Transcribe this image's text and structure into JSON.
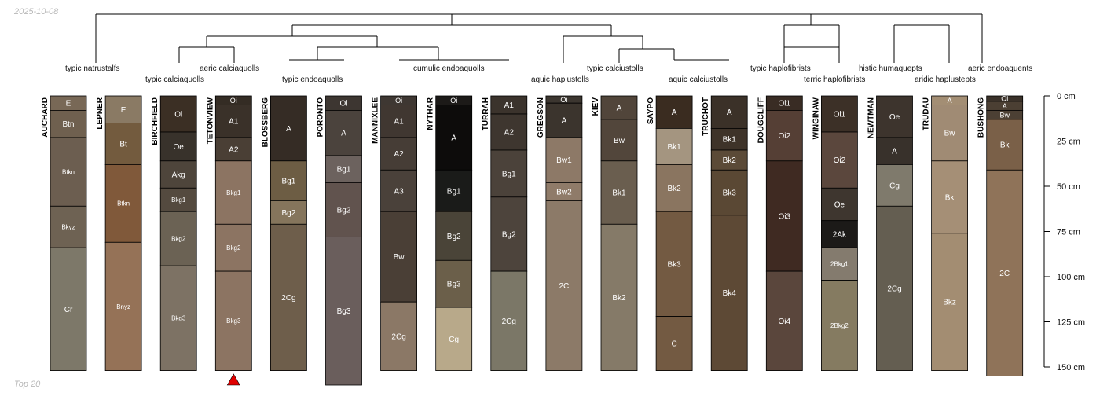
{
  "watermark": {
    "date": "2025-10-08",
    "footer": "Top 20"
  },
  "chart_data": {
    "type": "soil-profile-sketch",
    "y_axis": {
      "unit": "cm",
      "range": [
        0,
        150
      ],
      "ticks": [
        0,
        25,
        50,
        75,
        100,
        125,
        150
      ],
      "tick_labels": [
        "0 cm",
        "25 cm",
        "50 cm",
        "75 cm",
        "100 cm",
        "125 cm",
        "150 cm"
      ]
    },
    "taxa_labels": [
      "typic natrustalfs",
      "typic calciaquolls",
      "aeric calciaquolls",
      "typic endoaquolls",
      "cumulic endoaquolls",
      "aquic haplustolls",
      "typic calciustolls",
      "aquic calciustolls",
      "typic haplofibrists",
      "terric haplofibrists",
      "histic humaquepts",
      "aridic haplustepts",
      "aeric endoaquents"
    ],
    "marker": {
      "symbol": "triangle",
      "profile": "TETONVIEW",
      "color": "#e00000"
    },
    "profiles": [
      {
        "name": "AUCHARD",
        "horizons": [
          {
            "name": "E",
            "top": 0,
            "bottom": 8,
            "color": "#786856"
          },
          {
            "name": "Btn",
            "top": 8,
            "bottom": 23,
            "color": "#6f604f"
          },
          {
            "name": "Btkn",
            "top": 23,
            "bottom": 61,
            "color": "#6c5e50"
          },
          {
            "name": "Bkyz",
            "top": 61,
            "bottom": 84,
            "color": "#6e6253"
          },
          {
            "name": "Cr",
            "top": 84,
            "bottom": 152,
            "color": "#7d7869"
          }
        ]
      },
      {
        "name": "LEPNER",
        "horizons": [
          {
            "name": "E",
            "top": 0,
            "bottom": 15,
            "color": "#8a7a64"
          },
          {
            "name": "Bt",
            "top": 15,
            "bottom": 38,
            "color": "#735b3e"
          },
          {
            "name": "Btkn",
            "top": 38,
            "bottom": 81,
            "color": "#80593a"
          },
          {
            "name": "Bnyz",
            "top": 81,
            "bottom": 152,
            "color": "#957257"
          }
        ]
      },
      {
        "name": "BIRCHFIELD",
        "horizons": [
          {
            "name": "Oi",
            "top": 0,
            "bottom": 20,
            "color": "#3b2f24"
          },
          {
            "name": "Oe",
            "top": 20,
            "bottom": 36,
            "color": "#38322b"
          },
          {
            "name": "Akg",
            "top": 36,
            "bottom": 51,
            "color": "#4e453b"
          },
          {
            "name": "Bkg1",
            "top": 51,
            "bottom": 64,
            "color": "#544a3f"
          },
          {
            "name": "Bkg2",
            "top": 64,
            "bottom": 94,
            "color": "#6b6254"
          },
          {
            "name": "Bkg3",
            "top": 94,
            "bottom": 152,
            "color": "#7d7264"
          }
        ]
      },
      {
        "name": "TETONVIEW",
        "horizons": [
          {
            "name": "Oi",
            "top": 0,
            "bottom": 5,
            "color": "#342c24"
          },
          {
            "name": "A1",
            "top": 5,
            "bottom": 23,
            "color": "#3a3129"
          },
          {
            "name": "A2",
            "top": 23,
            "bottom": 36,
            "color": "#4a3f35"
          },
          {
            "name": "Bkg1",
            "top": 36,
            "bottom": 71,
            "color": "#8c7462"
          },
          {
            "name": "Bkg2",
            "top": 71,
            "bottom": 97,
            "color": "#8c7462"
          },
          {
            "name": "Bkg3",
            "top": 97,
            "bottom": 152,
            "color": "#8c7462"
          }
        ]
      },
      {
        "name": "BLOSSBERG",
        "horizons": [
          {
            "name": "A",
            "top": 0,
            "bottom": 36,
            "color": "#352c25"
          },
          {
            "name": "Bg1",
            "top": 36,
            "bottom": 58,
            "color": "#6d5d44"
          },
          {
            "name": "Bg2",
            "top": 58,
            "bottom": 71,
            "color": "#85755c"
          },
          {
            "name": "2Cg",
            "top": 71,
            "bottom": 152,
            "color": "#6e5e4b"
          }
        ]
      },
      {
        "name": "PORONTO",
        "horizons": [
          {
            "name": "Oi",
            "top": 0,
            "bottom": 8,
            "color": "#3d3631"
          },
          {
            "name": "A",
            "top": 8,
            "bottom": 33,
            "color": "#4b433d"
          },
          {
            "name": "Bg1",
            "top": 33,
            "bottom": 48,
            "color": "#6c625e"
          },
          {
            "name": "Bg2",
            "top": 48,
            "bottom": 78,
            "color": "#61534e"
          },
          {
            "name": "Bg3",
            "top": 78,
            "bottom": 160,
            "color": "#6a5e5c"
          }
        ]
      },
      {
        "name": "MANNIXLEE",
        "horizons": [
          {
            "name": "Oi",
            "top": 0,
            "bottom": 5,
            "color": "#3e3732"
          },
          {
            "name": "A1",
            "top": 5,
            "bottom": 23,
            "color": "#403731"
          },
          {
            "name": "A2",
            "top": 23,
            "bottom": 41,
            "color": "#463d36"
          },
          {
            "name": "A3",
            "top": 41,
            "bottom": 64,
            "color": "#4a413a"
          },
          {
            "name": "Bw",
            "top": 64,
            "bottom": 114,
            "color": "#4a3f36"
          },
          {
            "name": "2Cg",
            "top": 114,
            "bottom": 152,
            "color": "#8b7866"
          }
        ]
      },
      {
        "name": "NYTHAR",
        "horizons": [
          {
            "name": "Oi",
            "top": 0,
            "bottom": 5,
            "color": "#1c1a18"
          },
          {
            "name": "A",
            "top": 5,
            "bottom": 41,
            "color": "#0d0c0b"
          },
          {
            "name": "Bg1",
            "top": 41,
            "bottom": 64,
            "color": "#1a1b19"
          },
          {
            "name": "Bg2",
            "top": 64,
            "bottom": 91,
            "color": "#4a4438"
          },
          {
            "name": "Bg3",
            "top": 91,
            "bottom": 117,
            "color": "#6b5f4a"
          },
          {
            "name": "Cg",
            "top": 117,
            "bottom": 152,
            "color": "#b8a98a"
          }
        ]
      },
      {
        "name": "TURRAH",
        "horizons": [
          {
            "name": "A1",
            "top": 0,
            "bottom": 10,
            "color": "#3b332c"
          },
          {
            "name": "A2",
            "top": 10,
            "bottom": 30,
            "color": "#3e362f"
          },
          {
            "name": "Bg1",
            "top": 30,
            "bottom": 56,
            "color": "#4b423a"
          },
          {
            "name": "Bg2",
            "top": 56,
            "bottom": 97,
            "color": "#4d443c"
          },
          {
            "name": "2Cg",
            "top": 97,
            "bottom": 152,
            "color": "#7b7767"
          }
        ]
      },
      {
        "name": "GREGSON",
        "horizons": [
          {
            "name": "Oi",
            "top": 0,
            "bottom": 4,
            "color": "#3c3630"
          },
          {
            "name": "A",
            "top": 4,
            "bottom": 23,
            "color": "#3b342d"
          },
          {
            "name": "Bw1",
            "top": 23,
            "bottom": 48,
            "color": "#8d7967"
          },
          {
            "name": "Bw2",
            "top": 48,
            "bottom": 58,
            "color": "#8f7b69"
          },
          {
            "name": "2C",
            "top": 58,
            "bottom": 152,
            "color": "#8c7a68"
          }
        ]
      },
      {
        "name": "KIEV",
        "horizons": [
          {
            "name": "A",
            "top": 0,
            "bottom": 13,
            "color": "#51453a"
          },
          {
            "name": "Bw",
            "top": 13,
            "bottom": 36,
            "color": "#52463b"
          },
          {
            "name": "Bk1",
            "top": 36,
            "bottom": 71,
            "color": "#6a5e4f"
          },
          {
            "name": "Bk2",
            "top": 71,
            "bottom": 152,
            "color": "#857a68"
          }
        ]
      },
      {
        "name": "SAYPO",
        "horizons": [
          {
            "name": "A",
            "top": 0,
            "bottom": 18,
            "color": "#3a2c20"
          },
          {
            "name": "Bk1",
            "top": 18,
            "bottom": 38,
            "color": "#a49580"
          },
          {
            "name": "Bk2",
            "top": 38,
            "bottom": 64,
            "color": "#8a7560"
          },
          {
            "name": "Bk3",
            "top": 64,
            "bottom": 122,
            "color": "#735a42"
          },
          {
            "name": "C",
            "top": 122,
            "bottom": 152,
            "color": "#735a42"
          }
        ]
      },
      {
        "name": "TRUCHOT",
        "horizons": [
          {
            "name": "A",
            "top": 0,
            "bottom": 18,
            "color": "#3b3128"
          },
          {
            "name": "Bk1",
            "top": 18,
            "bottom": 30,
            "color": "#3e3329"
          },
          {
            "name": "Bk2",
            "top": 30,
            "bottom": 41,
            "color": "#5b4a37"
          },
          {
            "name": "Bk3",
            "top": 41,
            "bottom": 66,
            "color": "#5a4834"
          },
          {
            "name": "Bk4",
            "top": 66,
            "bottom": 152,
            "color": "#5d4935"
          }
        ]
      },
      {
        "name": "DOUGCLIFF",
        "horizons": [
          {
            "name": "Oi1",
            "top": 0,
            "bottom": 8,
            "color": "#392c24"
          },
          {
            "name": "Oi2",
            "top": 8,
            "bottom": 36,
            "color": "#553f35"
          },
          {
            "name": "Oi3",
            "top": 36,
            "bottom": 97,
            "color": "#3f2a22"
          },
          {
            "name": "Oi4",
            "top": 97,
            "bottom": 152,
            "color": "#5a463c"
          }
        ]
      },
      {
        "name": "WINGINAW",
        "horizons": [
          {
            "name": "Oi1",
            "top": 0,
            "bottom": 20,
            "color": "#3c3027"
          },
          {
            "name": "Oi2",
            "top": 20,
            "bottom": 51,
            "color": "#5b473d"
          },
          {
            "name": "Oe",
            "top": 51,
            "bottom": 69,
            "color": "#3e362f"
          },
          {
            "name": "2Ak",
            "top": 69,
            "bottom": 84,
            "color": "#1c1a18"
          },
          {
            "name": "2Bkg1",
            "top": 84,
            "bottom": 102,
            "color": "#847b6e"
          },
          {
            "name": "2Bkg2",
            "top": 102,
            "bottom": 152,
            "color": "#857b61"
          }
        ]
      },
      {
        "name": "NEWTMAN",
        "horizons": [
          {
            "name": "Oe",
            "top": 0,
            "bottom": 23,
            "color": "#3d342d"
          },
          {
            "name": "A",
            "top": 23,
            "bottom": 38,
            "color": "#38312b"
          },
          {
            "name": "Cg",
            "top": 38,
            "bottom": 61,
            "color": "#7f7a6c"
          },
          {
            "name": "2Cg",
            "top": 61,
            "bottom": 152,
            "color": "#645e51"
          }
        ]
      },
      {
        "name": "TRUDAU",
        "horizons": [
          {
            "name": "A",
            "top": 0,
            "bottom": 5,
            "color": "#a38e74"
          },
          {
            "name": "Bw",
            "top": 5,
            "bottom": 36,
            "color": "#a08b74"
          },
          {
            "name": "Bk",
            "top": 36,
            "bottom": 76,
            "color": "#a58f76"
          },
          {
            "name": "Bkz",
            "top": 76,
            "bottom": 152,
            "color": "#a38d72"
          }
        ]
      },
      {
        "name": "BUSHONG",
        "horizons": [
          {
            "name": "Oi",
            "top": 0,
            "bottom": 3,
            "color": "#3a3129"
          },
          {
            "name": "A",
            "top": 3,
            "bottom": 8,
            "color": "#4b3f33"
          },
          {
            "name": "Bw",
            "top": 8,
            "bottom": 13,
            "color": "#4c4034"
          },
          {
            "name": "Bk",
            "top": 13,
            "bottom": 41,
            "color": "#7a6048"
          },
          {
            "name": "2C",
            "top": 41,
            "bottom": 155,
            "color": "#8f7359"
          }
        ]
      }
    ]
  }
}
